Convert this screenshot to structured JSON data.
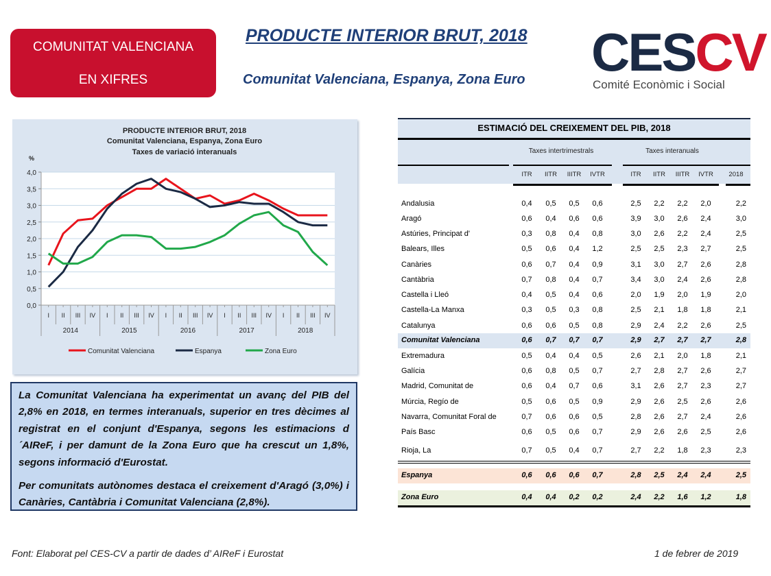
{
  "header": {
    "badge_line1": "COMUNITAT VALENCIANA",
    "badge_line2": "EN XIFRES",
    "title": "PRODUCTE INTERIOR BRUT, 2018",
    "subtitle": "Comunitat Valenciana, Espanya, Zona Euro",
    "logo_ces": "CES",
    "logo_cv": "CV",
    "logo_tagline": "Comité Econòmic i Social"
  },
  "colors": {
    "brand_red": "#c8102e",
    "navy": "#1b2a44",
    "title_blue": "#1f3f78",
    "series_cv": "#e8141c",
    "series_es": "#1b2a44",
    "series_ze": "#21a84a"
  },
  "chart_data": {
    "type": "line",
    "title": "PRODUCTE  INTERIOR BRUT, 2018",
    "subtitle": "Comunitat Valenciana,  Espanya, Zona Euro",
    "subtitle2": "Taxes de variació  interanuals",
    "ylabel": "%",
    "xlabel": "",
    "ylim": [
      0,
      4
    ],
    "yticks": [
      "0,0",
      "0,5",
      "1,0",
      "1,5",
      "2,0",
      "2,5",
      "3,0",
      "3,5",
      "4,0"
    ],
    "ytick_values": [
      0,
      0.5,
      1,
      1.5,
      2,
      2.5,
      3,
      3.5,
      4
    ],
    "grid": true,
    "legend_position": "bottom",
    "quarters": [
      "I",
      "II",
      "III",
      "IV",
      "I",
      "II",
      "III",
      "IV",
      "I",
      "II",
      "III",
      "IV",
      "I",
      "II",
      "III",
      "IV",
      "I",
      "II",
      "III",
      "IV"
    ],
    "years": [
      "2014",
      "2015",
      "2016",
      "2017",
      "2018"
    ],
    "series": [
      {
        "name": "Comunitat Valenciana",
        "color": "#e8141c",
        "values": [
          1.2,
          2.15,
          2.55,
          2.6,
          3.0,
          3.25,
          3.5,
          3.5,
          3.8,
          3.5,
          3.2,
          3.3,
          3.05,
          3.15,
          3.35,
          3.15,
          2.9,
          2.7,
          2.7,
          2.7
        ]
      },
      {
        "name": "Espanya",
        "color": "#1b2a44",
        "values": [
          0.55,
          1.0,
          1.75,
          2.25,
          2.9,
          3.35,
          3.65,
          3.8,
          3.5,
          3.4,
          3.2,
          2.95,
          3.0,
          3.1,
          3.05,
          3.05,
          2.8,
          2.5,
          2.4,
          2.4
        ]
      },
      {
        "name": "Zona Euro",
        "color": "#21a84a",
        "values": [
          1.55,
          1.25,
          1.25,
          1.45,
          1.9,
          2.1,
          2.1,
          2.05,
          1.7,
          1.7,
          1.75,
          1.9,
          2.1,
          2.45,
          2.7,
          2.8,
          2.4,
          2.2,
          1.6,
          1.2
        ]
      }
    ]
  },
  "summary": {
    "paragraph1": "La Comunitat Valenciana ha experimentat un avanç del PIB del 2,8% en 2018, en termes interanuals, superior en tres dècimes al registrat en el conjunt d'Espanya, segons les estimacions d´AIReF, i per damunt de la Zona Euro que ha crescut un 1,8%, segons informació d'Eurostat.",
    "paragraph2": "Per comunitats autònomes destaca el creixement d'Aragó (3,0%) i Canàries, Cantàbria i Comunitat Valenciana (2,8%)."
  },
  "table": {
    "title": "ESTIMACIÓ DEL CREIXEMENT DEL PIB, 2018",
    "group1": "Taxes intertrimestrals",
    "group2": "Taxes interanuals",
    "columns": [
      "ITR",
      "IITR",
      "IIITR",
      "IVTR",
      "ITR",
      "IITR",
      "IIITR",
      "IVTR",
      "2018"
    ],
    "rows": [
      {
        "name": "Andalusia",
        "values": [
          "0,4",
          "0,5",
          "0,5",
          "0,6",
          "2,5",
          "2,2",
          "2,2",
          "2,0",
          "2,2"
        ]
      },
      {
        "name": "Aragó",
        "values": [
          "0,6",
          "0,4",
          "0,6",
          "0,6",
          "3,9",
          "3,0",
          "2,6",
          "2,4",
          "3,0"
        ]
      },
      {
        "name": "Astúries, Principat d'",
        "values": [
          "0,3",
          "0,8",
          "0,4",
          "0,8",
          "3,0",
          "2,6",
          "2,2",
          "2,4",
          "2,5"
        ]
      },
      {
        "name": "Balears, Illes",
        "values": [
          "0,5",
          "0,6",
          "0,4",
          "1,2",
          "2,5",
          "2,5",
          "2,3",
          "2,7",
          "2,5"
        ]
      },
      {
        "name": "Canàries",
        "values": [
          "0,6",
          "0,7",
          "0,4",
          "0,9",
          "3,1",
          "3,0",
          "2,7",
          "2,6",
          "2,8"
        ]
      },
      {
        "name": "Cantàbria",
        "values": [
          "0,7",
          "0,8",
          "0,4",
          "0,7",
          "3,4",
          "3,0",
          "2,4",
          "2,6",
          "2,8"
        ]
      },
      {
        "name": "Castella i Lleó",
        "values": [
          "0,4",
          "0,5",
          "0,4",
          "0,6",
          "2,0",
          "1,9",
          "2,0",
          "1,9",
          "2,0"
        ]
      },
      {
        "name": "Castella-La Manxa",
        "values": [
          "0,3",
          "0,5",
          "0,3",
          "0,8",
          "2,5",
          "2,1",
          "1,8",
          "1,8",
          "2,1"
        ]
      },
      {
        "name": "Catalunya",
        "values": [
          "0,6",
          "0,6",
          "0,5",
          "0,8",
          "2,9",
          "2,4",
          "2,2",
          "2,6",
          "2,5"
        ]
      },
      {
        "name": "Comunitat Valenciana",
        "values": [
          "0,6",
          "0,7",
          "0,7",
          "0,7",
          "2,9",
          "2,7",
          "2,7",
          "2,7",
          "2,8"
        ],
        "highlight": "cv"
      },
      {
        "name": "Extremadura",
        "values": [
          "0,5",
          "0,4",
          "0,4",
          "0,5",
          "2,6",
          "2,1",
          "2,0",
          "1,8",
          "2,1"
        ]
      },
      {
        "name": "Galícia",
        "values": [
          "0,6",
          "0,8",
          "0,5",
          "0,7",
          "2,7",
          "2,8",
          "2,7",
          "2,6",
          "2,7"
        ]
      },
      {
        "name": "Madrid, Comunitat de",
        "values": [
          "0,6",
          "0,4",
          "0,7",
          "0,6",
          "3,1",
          "2,6",
          "2,7",
          "2,3",
          "2,7"
        ]
      },
      {
        "name": "Múrcia, Regío de",
        "values": [
          "0,5",
          "0,6",
          "0,5",
          "0,9",
          "2,9",
          "2,6",
          "2,5",
          "2,6",
          "2,6"
        ]
      },
      {
        "name": "Navarra, Comunitat Foral de",
        "values": [
          "0,7",
          "0,6",
          "0,6",
          "0,5",
          "2,8",
          "2,6",
          "2,7",
          "2,4",
          "2,6"
        ]
      },
      {
        "name": "País Basc",
        "values": [
          "0,6",
          "0,5",
          "0,6",
          "0,7",
          "2,9",
          "2,6",
          "2,6",
          "2,5",
          "2,6"
        ]
      },
      {
        "name": "Rioja, La",
        "values": [
          "0,7",
          "0,5",
          "0,4",
          "0,7",
          "2,7",
          "2,2",
          "1,8",
          "2,3",
          "2,3"
        ]
      }
    ],
    "totals": [
      {
        "name": "Espanya",
        "values": [
          "0,6",
          "0,6",
          "0,6",
          "0,7",
          "2,8",
          "2,5",
          "2,4",
          "2,4",
          "2,5"
        ],
        "highlight": "es"
      },
      {
        "name": "Zona Euro",
        "values": [
          "0,4",
          "0,4",
          "0,2",
          "0,2",
          "2,4",
          "2,2",
          "1,6",
          "1,2",
          "1,8"
        ],
        "highlight": "ze"
      }
    ]
  },
  "footer": {
    "source": "Font: Elaborat pel CES-CV a partir de dades d’ AIReF i Eurostat",
    "date": "1 de febrer de 2019"
  }
}
